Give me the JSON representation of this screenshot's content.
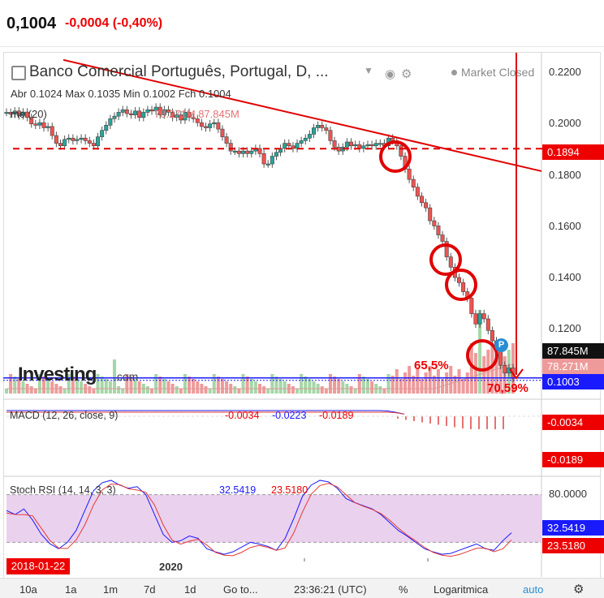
{
  "quote": {
    "price": "0,1004",
    "change": "-0,0004 (-0,40%)"
  },
  "chart_header": {
    "title": "Banco Comercial Português, Portugal, D, ...",
    "market_status": "Market Closed",
    "ohlc": "Abr 0.1024  Max 0.1035  Min 0.1002  Fch 0.1004",
    "volume_legend": "me (20)",
    "volume_values": "78.271M   87.845M"
  },
  "price_axis": {
    "ticks": [
      "0.2200",
      "0.2000",
      "0.1800",
      "0.1600",
      "0.1400",
      "0.1200"
    ],
    "tags": {
      "level": "0.1894",
      "vol1": "87.845M",
      "vol2": "78.271M",
      "last": "0.1003"
    }
  },
  "annotations": {
    "drop_1": "65,5%",
    "drop_2": "70,59%",
    "badge": "P"
  },
  "macd": {
    "legend_name": "MACD (12, 26, close, 9)",
    "v1": "-0.0034",
    "v2": "-0.0223",
    "v3": "-0.0189",
    "tags": [
      "-0.0034",
      "-0.0189"
    ]
  },
  "stoch_rsi": {
    "legend_name": "Stoch RSI (14, 14, 3, 3)",
    "k": "32.5419",
    "d": "23.5180",
    "ticks": [
      "80.0000"
    ],
    "tags": [
      "32.5419",
      "23.5180"
    ]
  },
  "x_axis": {
    "date_tag": "2018-01-22",
    "year_label": "2020"
  },
  "bottom_bar": {
    "ranges": [
      "10a",
      "1a",
      "1m",
      "7d",
      "1d"
    ],
    "goto": "Go to...",
    "time": "23:36:21 (UTC)",
    "percent": "%",
    "log": "log",
    "logarithmic": "Logaritmica",
    "auto": "auto"
  },
  "logo": {
    "brand": "Investing",
    "suffix": ".com"
  },
  "colors": {
    "up": "#26a69a",
    "down": "#ef5350",
    "annotation": "#e00000",
    "stoch_band": "#e1bee7"
  },
  "chart_data": {
    "type": "candlestick",
    "title": "Banco Comercial Português, Portugal, D",
    "price_ylim": [
      0.093,
      0.225
    ],
    "closes": [
      0.2035,
      0.2028,
      0.204,
      0.2022,
      0.2036,
      0.2015,
      0.199,
      0.1985,
      0.1995,
      0.1975,
      0.198,
      0.1945,
      0.1915,
      0.1905,
      0.193,
      0.1935,
      0.1925,
      0.193,
      0.1935,
      0.1925,
      0.1915,
      0.1905,
      0.194,
      0.1965,
      0.1985,
      0.201,
      0.202,
      0.2035,
      0.2045,
      0.203,
      0.2025,
      0.204,
      0.2015,
      0.2035,
      0.2045,
      0.204,
      0.2055,
      0.2025,
      0.2045,
      0.2035,
      0.2015,
      0.2025,
      0.2005,
      0.2035,
      0.2015,
      0.201,
      0.1995,
      0.198,
      0.1975,
      0.199,
      0.1995,
      0.197,
      0.194,
      0.1915,
      0.1885,
      0.1885,
      0.1875,
      0.1885,
      0.1875,
      0.1885,
      0.1895,
      0.1875,
      0.1835,
      0.1835,
      0.1865,
      0.188,
      0.1895,
      0.1915,
      0.1905,
      0.1895,
      0.1915,
      0.1925,
      0.1935,
      0.195,
      0.1975,
      0.1985,
      0.1975,
      0.1965,
      0.1925,
      0.19,
      0.1885,
      0.19,
      0.192,
      0.1905,
      0.191,
      0.1895,
      0.1905,
      0.191,
      0.1905,
      0.1915,
      0.1915,
      0.1905,
      0.1935,
      0.1925,
      0.1905,
      0.1865,
      0.1815,
      0.1775,
      0.1745,
      0.171,
      0.1685,
      0.1665,
      0.1615,
      0.1595,
      0.156,
      0.1535,
      0.1475,
      0.1435,
      0.1395,
      0.1375,
      0.134,
      0.1315,
      0.1255,
      0.1215,
      0.1255,
      0.1235,
      0.119,
      0.115,
      0.1115,
      0.1055,
      0.1025,
      0.1045,
      0.1004
    ],
    "trendline": [
      [
        0.2238,
        0.1807
      ]
    ],
    "support_level": 0.1894,
    "last_price": 0.1003,
    "macd": {
      "macd": -0.0223,
      "signal": -0.0189,
      "hist": -0.0034
    },
    "stoch_rsi": {
      "k": 32.5419,
      "d": 23.518,
      "bands": [
        20,
        80
      ]
    }
  }
}
